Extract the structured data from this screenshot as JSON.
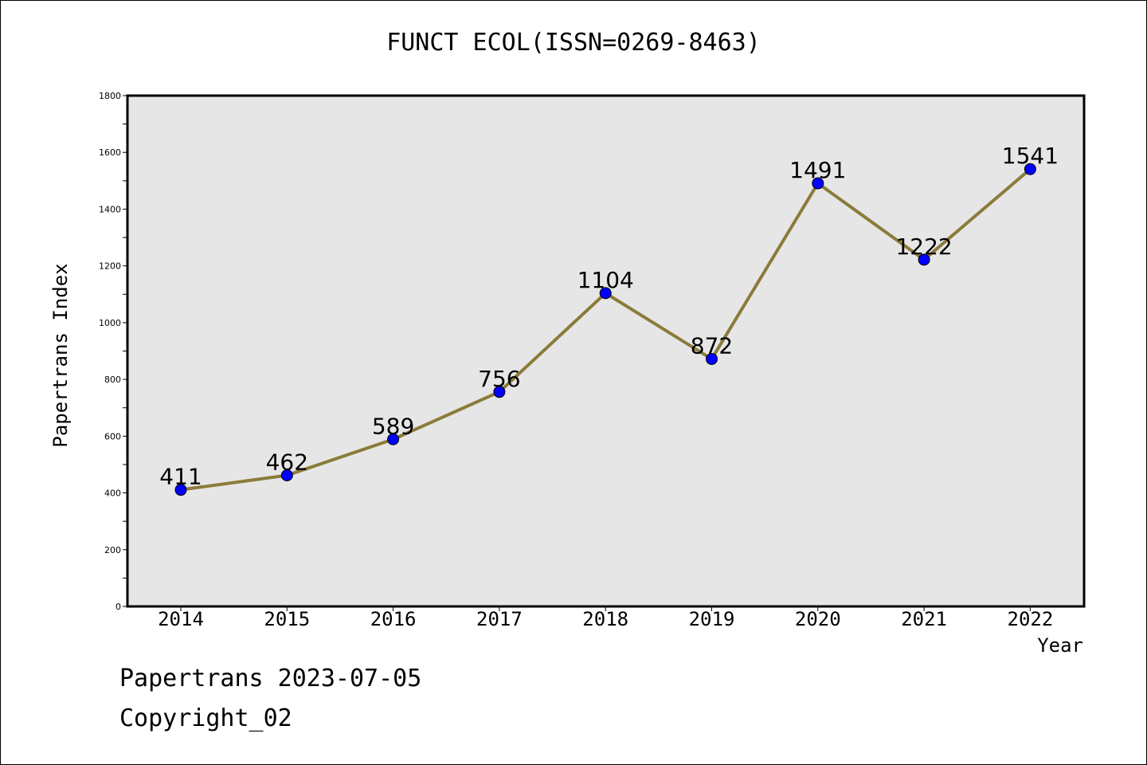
{
  "chart_data": {
    "type": "line",
    "title": "FUNCT ECOL(ISSN=0269-8463)",
    "xlabel": "Year",
    "ylabel": "Papertrans Index",
    "categories": [
      "2014",
      "2015",
      "2016",
      "2017",
      "2018",
      "2019",
      "2020",
      "2021",
      "2022"
    ],
    "series": [
      {
        "values": [
          411,
          462,
          589,
          756,
          1104,
          872,
          1491,
          1222,
          1541
        ]
      }
    ],
    "ylim": [
      0,
      1800
    ],
    "yticks": [
      0,
      200,
      400,
      600,
      800,
      1000,
      1200,
      1400,
      1600,
      1800
    ],
    "line_color": "#8b7b3a",
    "marker_color": "#0000ff",
    "plot_background": "#e6e6e6",
    "grid": false,
    "legend": "none"
  },
  "footer": {
    "line1": "Papertrans 2023-07-05",
    "line2": "Copyright_02"
  }
}
